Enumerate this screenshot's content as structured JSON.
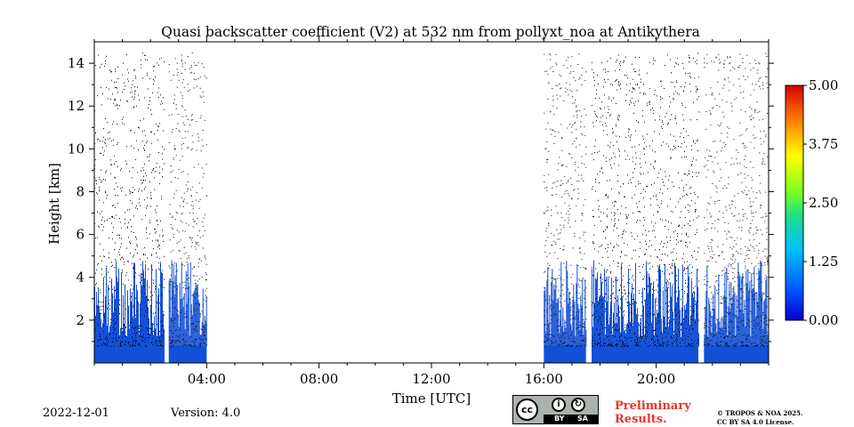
{
  "chart_data": {
    "type": "heatmap",
    "title": "Quasi backscatter coefficient (V2) at 532 nm from pollyxt_noa at Antikythera",
    "xlabel": "Time [UTC]",
    "ylabel": "Height [km]",
    "xlim": [
      0,
      24
    ],
    "ylim": [
      0,
      15
    ],
    "x_ticks": [
      {
        "value": 4,
        "label": "04:00"
      },
      {
        "value": 8,
        "label": "08:00"
      },
      {
        "value": 12,
        "label": "12:00"
      },
      {
        "value": 16,
        "label": "16:00"
      },
      {
        "value": 20,
        "label": "20:00"
      }
    ],
    "y_ticks": [
      {
        "value": 2,
        "label": "2"
      },
      {
        "value": 4,
        "label": "4"
      },
      {
        "value": 6,
        "label": "6"
      },
      {
        "value": 8,
        "label": "8"
      },
      {
        "value": 10,
        "label": "10"
      },
      {
        "value": 12,
        "label": "12"
      },
      {
        "value": 14,
        "label": "14"
      }
    ],
    "colorbar": {
      "range": [
        0,
        5
      ],
      "ticks": [
        {
          "value": 0,
          "label": "0.00"
        },
        {
          "value": 1.25,
          "label": "1.25"
        },
        {
          "value": 2.5,
          "label": "2.50"
        },
        {
          "value": 3.75,
          "label": "3.75"
        },
        {
          "value": 5,
          "label": "5.00"
        }
      ],
      "colormap": "jet"
    },
    "measurement_periods": [
      {
        "start": 0.0,
        "end": 2.5
      },
      {
        "start": 2.65,
        "end": 4.0
      },
      {
        "start": 16.0,
        "end": 17.5
      },
      {
        "start": 17.7,
        "end": 21.5
      },
      {
        "start": 21.7,
        "end": 24.0
      }
    ],
    "dense_layer_top_km": 0.8,
    "signal_top_km": 14.5,
    "grid": false,
    "colors": {
      "low_signal": "#1250d8",
      "noise": "#000000"
    }
  },
  "footer": {
    "date": "2022-12-01",
    "version": "Version: 4.0",
    "license_badge": {
      "main": "cc",
      "by": "BY",
      "sa": "SA"
    },
    "preliminary": "Preliminary Results.",
    "copyright_line1": "© TROPOS & NOA 2025.",
    "copyright_line2": "CC BY SA 4.0 License."
  }
}
